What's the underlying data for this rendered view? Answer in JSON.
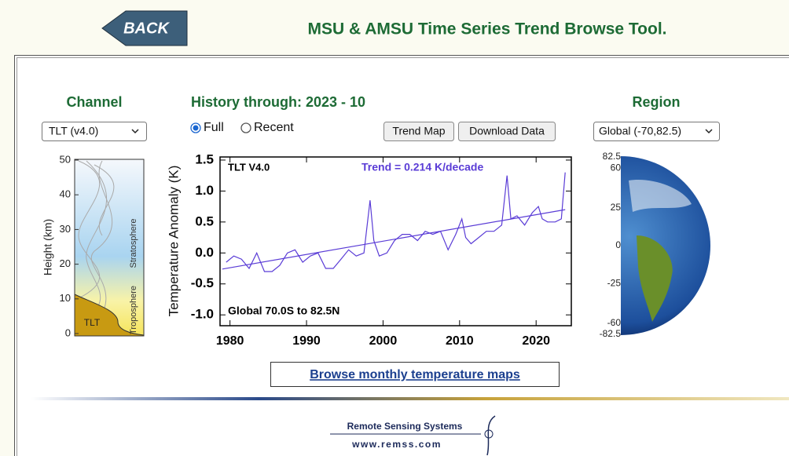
{
  "header": {
    "back_button": "BACK",
    "title": "MSU & AMSU Time Series Trend Browse Tool."
  },
  "channel": {
    "label": "Channel",
    "selected": "TLT (v4.0)"
  },
  "history": {
    "label": "History through: 2023 - 10",
    "options": [
      "Full",
      "Recent"
    ],
    "selected_option": 0
  },
  "buttons": [
    "Trend Map",
    "Download Data"
  ],
  "region": {
    "label": "Region",
    "selected": "Global (-70,82.5)"
  },
  "weighting": {
    "ylabel": "Height (km)",
    "ylim": [
      0,
      50
    ],
    "yticks": [
      0,
      10,
      20,
      30,
      40,
      50
    ],
    "layers": [
      "Stratosphere",
      "Troposphere"
    ],
    "channel_label": "TLT"
  },
  "chart_data": {
    "type": "line",
    "title": "TLT V4.0",
    "trend_label": "Trend =  0.214 K/decade",
    "region_label": "Global  70.0S to  82.5N",
    "ylabel": "Temperature Anomaly (K)",
    "color": "#5a3cd6",
    "x": [
      1979.5,
      1980.5,
      1981.5,
      1982.5,
      1983.5,
      1984.5,
      1985.5,
      1986.5,
      1987.5,
      1988.5,
      1989.5,
      1990.5,
      1991.5,
      1992.5,
      1993.5,
      1994.5,
      1995.5,
      1996.5,
      1997.5,
      1998.3,
      1998.8,
      1999.5,
      2000.5,
      2001.5,
      2002.5,
      2003.5,
      2004.5,
      2005.5,
      2006.5,
      2007.5,
      2008.5,
      2009.5,
      2010.3,
      2010.8,
      2011.5,
      2012.5,
      2013.5,
      2014.5,
      2015.5,
      2016.2,
      2016.7,
      2017.5,
      2018.5,
      2019.5,
      2020.3,
      2020.8,
      2021.5,
      2022.5,
      2023.3,
      2023.8
    ],
    "values": [
      -0.15,
      -0.05,
      -0.1,
      -0.25,
      0.0,
      -0.3,
      -0.3,
      -0.2,
      0.0,
      0.05,
      -0.15,
      -0.05,
      0.0,
      -0.25,
      -0.25,
      -0.1,
      0.05,
      -0.05,
      0.0,
      0.85,
      0.2,
      -0.05,
      0.0,
      0.2,
      0.3,
      0.3,
      0.2,
      0.35,
      0.3,
      0.35,
      0.05,
      0.3,
      0.55,
      0.25,
      0.15,
      0.25,
      0.35,
      0.35,
      0.45,
      1.25,
      0.55,
      0.6,
      0.45,
      0.65,
      0.75,
      0.55,
      0.5,
      0.5,
      0.55,
      1.3
    ],
    "trend": {
      "x": [
        1979,
        2023.8
      ],
      "values": [
        -0.26,
        0.7
      ]
    },
    "xlim": [
      1978.7,
      2024.6
    ],
    "ylim": [
      -1.175,
      1.55
    ],
    "xticks": [
      1980,
      1990,
      2000,
      2010,
      2020
    ],
    "yticks": [
      {
        "value": -1.0,
        "label": "-1.0"
      },
      {
        "value": -0.5,
        "label": "-0.5"
      },
      {
        "value": 0.0,
        "label": "0.0"
      },
      {
        "value": 0.5,
        "label": "0.5"
      },
      {
        "value": 1.0,
        "label": "1.0"
      },
      {
        "value": 1.5,
        "label": "1.5"
      }
    ]
  },
  "globe": {
    "lat_ticks": [
      82.5,
      60,
      25,
      0,
      -25,
      -60,
      -82.5
    ]
  },
  "link": "Browse monthly temperature maps",
  "footer": {
    "org": "Remote Sensing Systems",
    "url": "www.remss.com"
  }
}
